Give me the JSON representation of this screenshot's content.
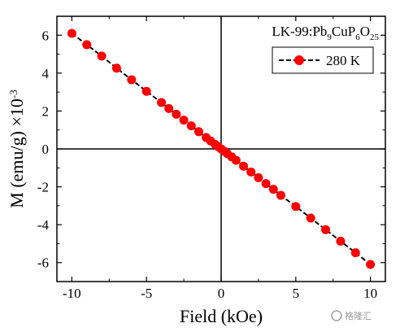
{
  "chart_data": {
    "type": "scatter",
    "xlabel": "Field (kOe)",
    "ylabel_main": "M (emu/g) ×10",
    "ylabel_exp": "-3",
    "xlim": [
      -11,
      11
    ],
    "ylim": [
      -7,
      7
    ],
    "xticks": [
      -10,
      -5,
      0,
      5,
      10
    ],
    "yticks": [
      -6,
      -4,
      -2,
      0,
      2,
      4,
      6
    ],
    "xtick_labels": [
      "-10",
      "-5",
      "0",
      "5",
      "10"
    ],
    "ytick_labels": [
      "-6",
      "-4",
      "-2",
      "0",
      "2",
      "4",
      "6"
    ],
    "annotation": {
      "prefix": "LK-99:Pb",
      "sub1": "9",
      "mid1": "CuP",
      "sub2": "6",
      "mid2": "O",
      "sub3": "25"
    },
    "legend_position": "top-right",
    "grid": false,
    "marker_color": "#ff0000",
    "line_color": "#000000",
    "series": [
      {
        "name": "280 K",
        "x": [
          -10,
          -9,
          -8,
          -7,
          -6,
          -5,
          -4,
          -3.5,
          -3,
          -2.5,
          -2,
          -1.5,
          -1,
          -0.7,
          -0.4,
          -0.2,
          0,
          0.2,
          0.4,
          0.7,
          1,
          1.5,
          2,
          2.5,
          3,
          3.5,
          4,
          5,
          6,
          7,
          8,
          9,
          10
        ],
        "y": [
          6.1,
          5.5,
          4.9,
          4.26,
          3.65,
          3.04,
          2.45,
          2.13,
          1.83,
          1.52,
          1.22,
          0.91,
          0.6,
          0.42,
          0.24,
          0.12,
          0,
          -0.12,
          -0.24,
          -0.42,
          -0.6,
          -0.91,
          -1.22,
          -1.52,
          -1.83,
          -2.13,
          -2.45,
          -3.04,
          -3.65,
          -4.26,
          -4.87,
          -5.48,
          -6.1
        ]
      }
    ]
  },
  "watermark_text": "格隆汇"
}
